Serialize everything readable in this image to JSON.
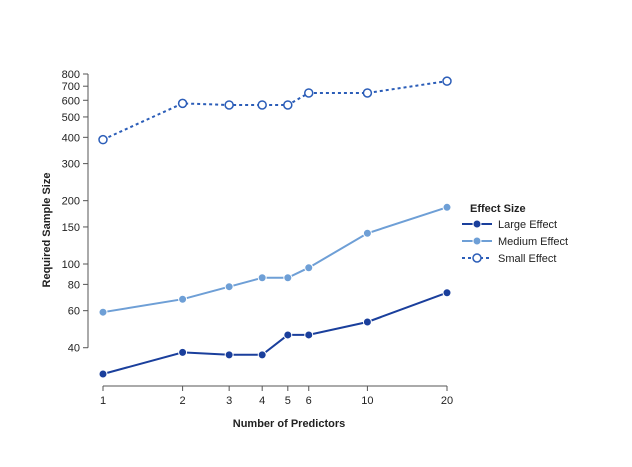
{
  "chart_data": {
    "type": "line",
    "xlabel": "Number of Predictors",
    "ylabel": "Required Sample Size",
    "x_scale": "log",
    "y_scale": "log",
    "xlim": [
      1,
      20
    ],
    "ylim": [
      30,
      800
    ],
    "x_ticks": [
      1,
      2,
      3,
      4,
      5,
      6,
      10,
      20
    ],
    "y_ticks": [
      40,
      60,
      80,
      100,
      150,
      200,
      300,
      400,
      500,
      600,
      700,
      800
    ],
    "x": [
      1,
      2,
      3,
      4,
      5,
      6,
      10,
      20
    ],
    "legend_title": "Effect Size",
    "legend_position": "right",
    "series": [
      {
        "name": "Large Effect",
        "color": "#1a3f9c",
        "style": "solid",
        "marker": "filled-circle",
        "values": [
          30,
          38,
          37,
          37,
          46,
          46,
          53,
          73
        ]
      },
      {
        "name": "Medium Effect",
        "color": "#6e9fd6",
        "style": "solid",
        "marker": "filled-circle",
        "values": [
          59,
          68,
          78,
          86,
          86,
          96,
          140,
          186
        ]
      },
      {
        "name": "Small Effect",
        "color": "#2b5db8",
        "style": "dotted",
        "marker": "open-circle",
        "values": [
          390,
          580,
          570,
          570,
          570,
          650,
          650,
          740
        ]
      }
    ],
    "grid": false
  }
}
